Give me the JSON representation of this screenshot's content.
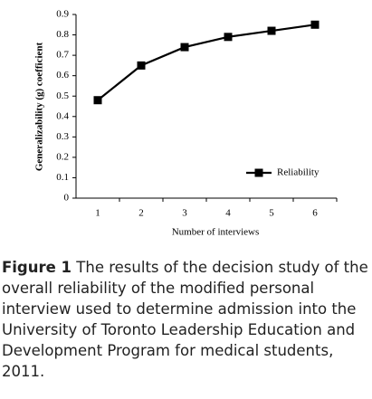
{
  "chart_data": {
    "type": "line",
    "x_label": "Number of interviews",
    "y_label": "Generalizability (g) coefficient",
    "categories": [
      "1",
      "2",
      "3",
      "4",
      "5",
      "6"
    ],
    "series": [
      {
        "name": "Reliability",
        "color": "#000000",
        "values": [
          0.48,
          0.65,
          0.74,
          0.79,
          0.82,
          0.85
        ]
      }
    ],
    "ylim": [
      0,
      0.9
    ],
    "yticks": [
      0,
      0.1,
      0.2,
      0.3,
      0.4,
      0.5,
      0.6,
      0.7,
      0.8,
      0.9
    ],
    "grid": false,
    "legend": "lower right"
  },
  "caption": {
    "label": "Figure 1",
    "text": "The results of the decision study of the overall reliability of the modified personal interview used to determine admission into the University of Toronto Leadership Education and Development Program for medical students, 2011."
  }
}
